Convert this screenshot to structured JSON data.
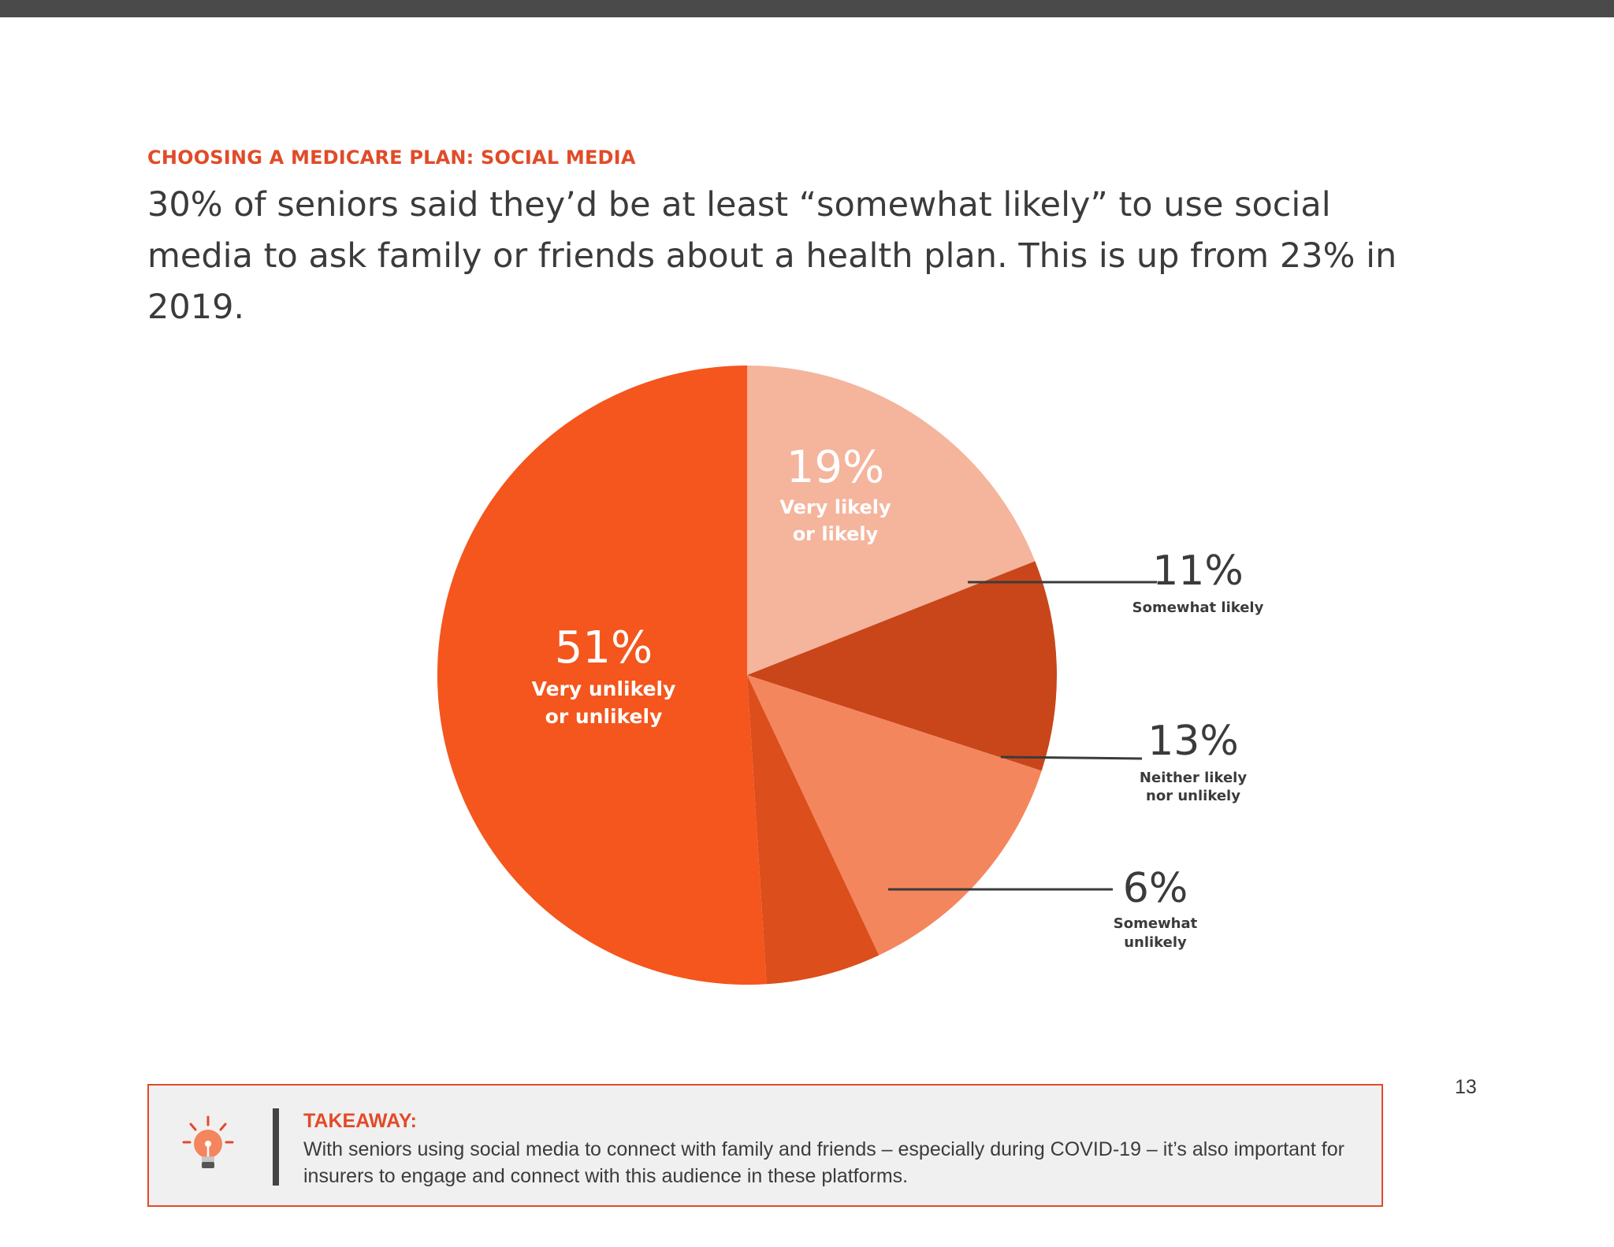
{
  "header": {
    "section_title": "CHOOSING A MEDICARE PLAN: SOCIAL MEDIA",
    "headline": "30% of seniors said they’d be at least “somewhat likely” to use social media to ask family or friends about a health plan. This is up from 23% in 2019."
  },
  "colors": {
    "accent": "#e14b28",
    "text": "#3b3b3b"
  },
  "chart_data": {
    "type": "pie",
    "title": "",
    "start_angle_deg": 0,
    "direction": "clockwise",
    "slices": [
      {
        "label_lines": [
          "Very likely",
          "or likely"
        ],
        "value": 19,
        "value_text": "19%",
        "color": "#f5b49c",
        "label_position": "inside"
      },
      {
        "label_lines": [
          "Somewhat likely"
        ],
        "value": 11,
        "value_text": "11%",
        "color": "#c8461a",
        "label_position": "outside"
      },
      {
        "label_lines": [
          "Neither likely",
          "nor unlikely"
        ],
        "value": 13,
        "value_text": "13%",
        "color": "#f4865e",
        "label_position": "outside"
      },
      {
        "label_lines": [
          "Somewhat",
          "unlikely"
        ],
        "value": 6,
        "value_text": "6%",
        "color": "#dc4e1b",
        "label_position": "outside"
      },
      {
        "label_lines": [
          "Very unlikely",
          "or unlikely"
        ],
        "value": 51,
        "value_text": "51%",
        "color": "#f4561d",
        "label_position": "inside"
      }
    ]
  },
  "takeaway": {
    "heading": "TAKEAWAY:",
    "text": "With seniors using social media to connect with family and friends – especially during COVID-19 – it’s also important for insurers to engage and connect with this audience in these platforms.",
    "icon": "lightbulb-icon"
  },
  "page_number": "13"
}
